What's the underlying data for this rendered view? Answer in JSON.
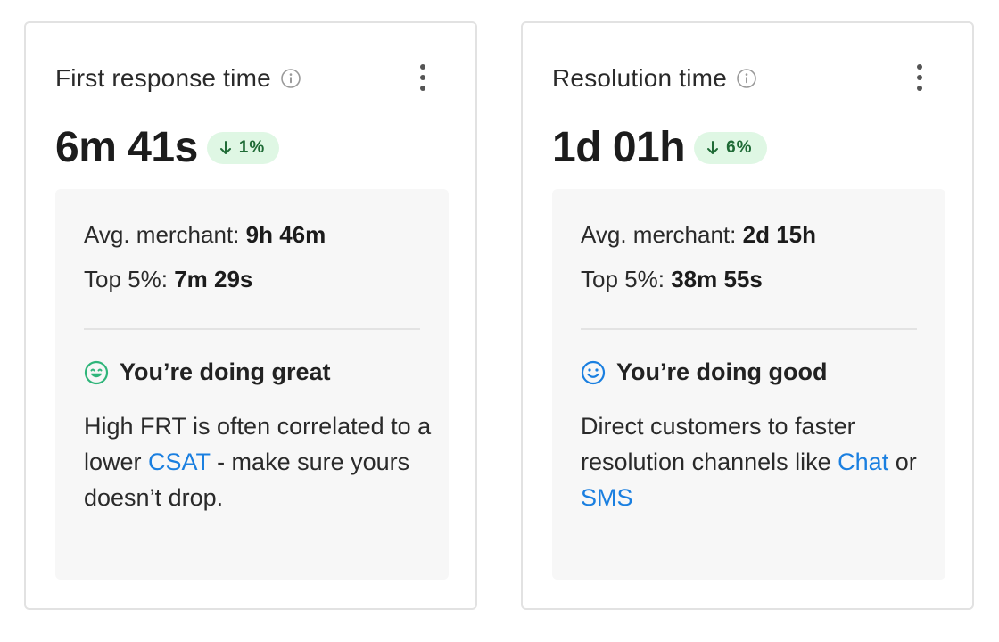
{
  "cards": [
    {
      "title": "First response time",
      "value": "6m 41s",
      "change": "1%",
      "change_direction": "down",
      "avg_label": "Avg. merchant:",
      "avg_value": "9h 46m",
      "top_label": "Top 5%:",
      "top_value": "7m 29s",
      "verdict": "You’re doing great",
      "verdict_icon": "grinning-face-icon",
      "verdict_color": "#2fb57a",
      "advice_parts": [
        "High FRT is often correlated to a lower ",
        " - make sure yours doesn’t drop."
      ],
      "advice_links": [
        "CSAT"
      ]
    },
    {
      "title": "Resolution time",
      "value": "1d 01h",
      "change": "6%",
      "change_direction": "down",
      "avg_label": "Avg. merchant:",
      "avg_value": "2d 15h",
      "top_label": "Top 5%:",
      "top_value": "38m 55s",
      "verdict": "You’re doing good",
      "verdict_icon": "smiling-face-icon",
      "verdict_color": "#1a7fe0",
      "advice_parts": [
        "Direct customers to faster resolution channels like ",
        " or ",
        ""
      ],
      "advice_links": [
        "Chat",
        "SMS"
      ]
    }
  ],
  "colors": {
    "badge_bg": "#dff7e4",
    "badge_text": "#1f6b36",
    "link": "#1a7fe0",
    "panel_bg": "#f7f7f7",
    "card_border": "#e2e2e2"
  }
}
